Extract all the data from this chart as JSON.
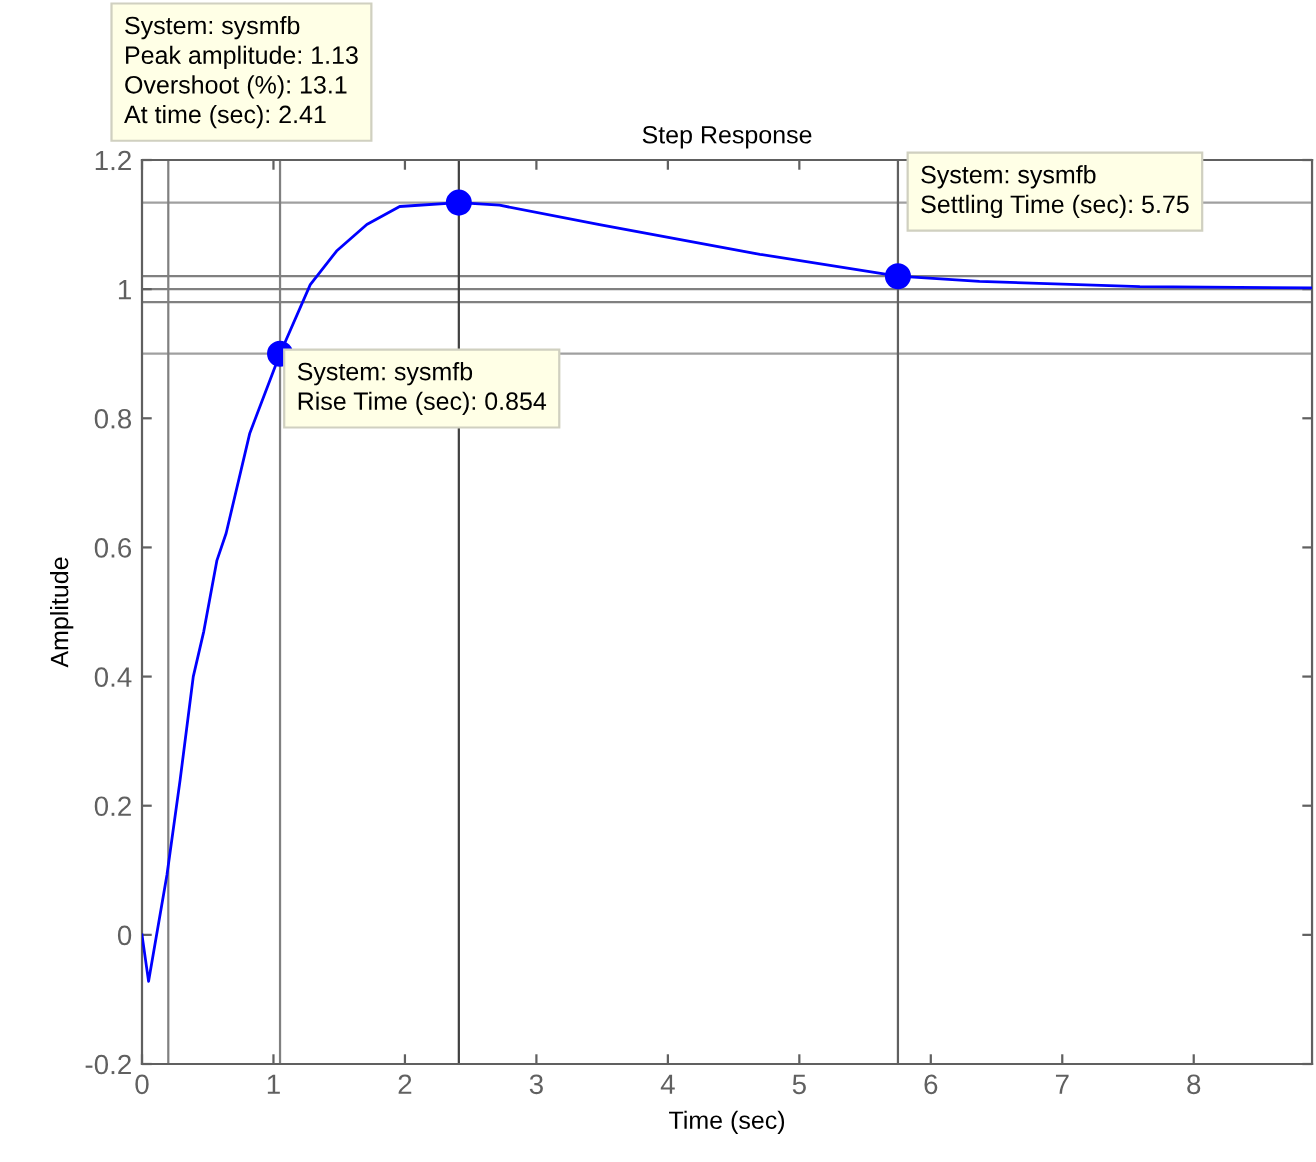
{
  "chart_data": {
    "type": "line",
    "title": "Step Response",
    "xlabel": "Time (sec)",
    "ylabel": "Amplitude",
    "xlim": [
      0,
      8.9
    ],
    "xticks": [
      0,
      1,
      2,
      3,
      4,
      5,
      6,
      7,
      8
    ],
    "ylim": [
      -0.2,
      1.2
    ],
    "yticks": [
      -0.2,
      0,
      0.2,
      0.4,
      0.6,
      0.8,
      1,
      1.2
    ],
    "grid": false,
    "legend": false,
    "series": [
      {
        "color": "#0000ff",
        "marker": "none",
        "line_style": "solid",
        "x": [
          0,
          0.05,
          0.19,
          0.29,
          0.39,
          0.47,
          0.52,
          0.57,
          0.64,
          0.82,
          1.05,
          1.28,
          1.48,
          1.71,
          1.96,
          2.41,
          2.72,
          3.48,
          4.7,
          5.75,
          6.37,
          7.59,
          8.9
        ],
        "values": [
          0,
          -0.072,
          0.093,
          0.24,
          0.4,
          0.47,
          0.525,
          0.58,
          0.622,
          0.777,
          0.9,
          1.007,
          1.059,
          1.1,
          1.128,
          1.134,
          1.13,
          1.1,
          1.054,
          1.02,
          1.012,
          1.004,
          1.002
        ]
      },
      {
        "type": "scatter",
        "color": "#0000ff",
        "marker": "circle",
        "x": [
          1.05,
          2.41,
          5.75
        ],
        "values": [
          0.9,
          1.134,
          1.02
        ]
      }
    ],
    "ref_lines": [
      {
        "axis": "y",
        "value": 1.02,
        "color": "#808080",
        "line_style": "solid"
      },
      {
        "axis": "y",
        "value": 1.0,
        "color": "#808080",
        "line_style": "solid"
      },
      {
        "axis": "y",
        "value": 0.98,
        "color": "#808080",
        "line_style": "solid"
      },
      {
        "axis": "y",
        "value": 0.9,
        "color": "#a0a0a0",
        "line_style": "solid"
      },
      {
        "axis": "y",
        "value": 1.134,
        "color": "#a0a0a0",
        "line_style": "solid"
      },
      {
        "axis": "x",
        "value": 0.2,
        "color": "#808080",
        "line_style": "solid"
      },
      {
        "axis": "x",
        "value": 1.05,
        "color": "#808080",
        "line_style": "solid"
      },
      {
        "axis": "x",
        "value": 2.41,
        "color": "#404040",
        "line_style": "solid"
      },
      {
        "axis": "x",
        "value": 5.75,
        "color": "#606060",
        "line_style": "solid"
      }
    ],
    "annotations": [
      "System: sysmfb\nPeak amplitude: 1.13\nOvershoot (%): 13.1\nAt time (sec): 2.41",
      {
        "text": "System: sysmfb\nRise Time (sec): 0.854",
        "x": 1.05,
        "y": 0.9
      },
      {
        "text": "System: sysmfb\nSettling Time (sec): 5.75",
        "x": 5.75,
        "y": 1.02
      }
    ]
  }
}
